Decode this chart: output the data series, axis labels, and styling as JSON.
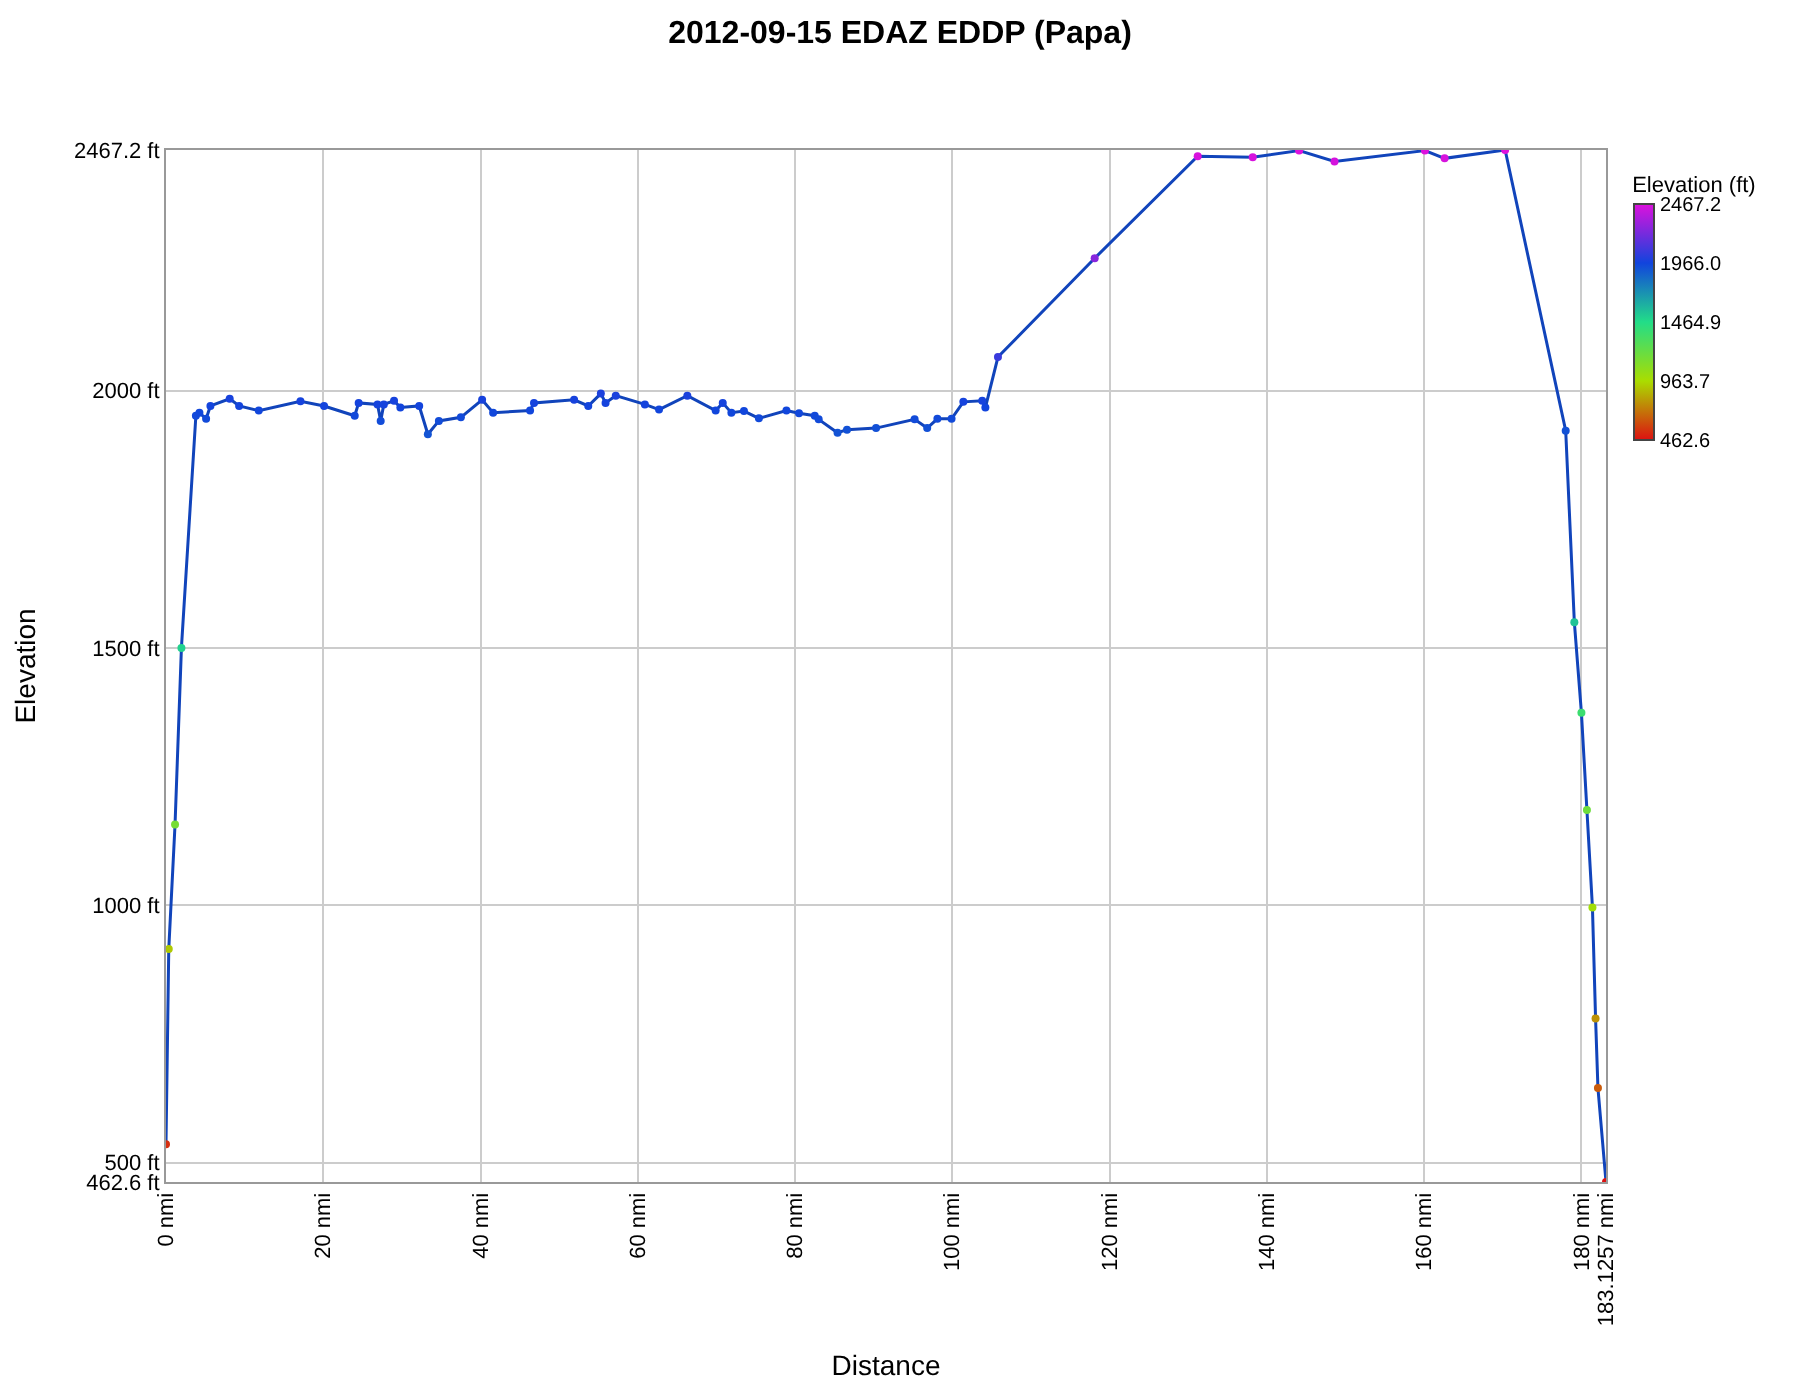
{
  "chart_data": {
    "type": "line",
    "title": "2012-09-15 EDAZ EDDP (Papa)",
    "xlabel": "Distance",
    "ylabel": "Elevation",
    "clabel": "Elevation (ft)",
    "x": [
      0,
      0.35,
      1.15,
      1.96,
      3.8,
      4.25,
      5.1,
      5.65,
      8.1,
      9.3,
      11.8,
      17.1,
      20.1,
      24.0,
      24.5,
      26.9,
      27.3,
      27.7,
      29.0,
      29.8,
      32.2,
      33.3,
      34.7,
      37.5,
      40.2,
      41.6,
      46.3,
      46.8,
      51.9,
      53.7,
      55.3,
      55.9,
      57.2,
      60.9,
      62.7,
      66.3,
      69.9,
      70.8,
      71.9,
      73.5,
      75.4,
      78.9,
      80.5,
      82.5,
      83.0,
      85.4,
      86.6,
      90.3,
      95.2,
      96.8,
      98.1,
      99.9,
      101.4,
      103.8,
      104.2,
      105.8,
      118.1,
      131.2,
      138.2,
      144.1,
      148.6,
      160.1,
      162.6,
      170.3,
      178.0,
      179.1,
      180.0,
      180.7,
      181.4,
      181.8,
      182.1,
      183.1257
    ],
    "series": [
      {
        "color": "#1144bb",
        "values": [
          536,
          915,
          1157,
          1500,
          1951,
          1957,
          1945,
          1970,
          1984,
          1970,
          1961,
          1979,
          1970,
          1951,
          1976,
          1973,
          1941,
          1973,
          1980,
          1967,
          1970,
          1915,
          1941,
          1948,
          1982,
          1957,
          1961,
          1976,
          1982,
          1970,
          1994,
          1976,
          1990,
          1973,
          1963,
          1990,
          1961,
          1976,
          1957,
          1960,
          1946,
          1961,
          1956,
          1951,
          1944,
          1918,
          1924,
          1927,
          1944,
          1927,
          1945,
          1945,
          1978,
          1980,
          1967,
          2065,
          2257,
          2455,
          2453,
          2466,
          2445,
          2466,
          2451,
          2467.2,
          1922,
          1550,
          1374,
          1185,
          996,
          780,
          645,
          462.6
        ]
      }
    ],
    "xlim": [
      0,
      183.1257
    ],
    "xticks": [
      {
        "value": 0,
        "label": "0 nmi"
      },
      {
        "value": 20,
        "label": "20 nmi"
      },
      {
        "value": 40,
        "label": "40 nmi"
      },
      {
        "value": 60,
        "label": "60 nmi"
      },
      {
        "value": 80,
        "label": "80 nmi"
      },
      {
        "value": 100,
        "label": "100 nmi"
      },
      {
        "value": 120,
        "label": "120 nmi"
      },
      {
        "value": 140,
        "label": "140 nmi"
      },
      {
        "value": 160,
        "label": "160 nmi"
      },
      {
        "value": 180,
        "label": "180 nmi"
      },
      {
        "value": 183.1257,
        "label": "183.1257 nmi"
      }
    ],
    "ylim": [
      462.6,
      2467.2
    ],
    "yticks": [
      {
        "value": 462.6,
        "label": "462.6 ft"
      },
      {
        "value": 500,
        "label": "500 ft"
      },
      {
        "value": 1000,
        "label": "1000 ft"
      },
      {
        "value": 1500,
        "label": "1500 ft"
      },
      {
        "value": 2000,
        "label": "2000 ft"
      },
      {
        "value": 2467.2,
        "label": "2467.2 ft"
      }
    ],
    "clim": [
      462.6,
      2467.2
    ],
    "cticks": [
      462.6,
      963.7,
      1464.9,
      {
        "value": 1966,
        "label": "1966.0"
      },
      2467.2
    ],
    "grid": true,
    "marker": "circle",
    "line_style": "solid"
  }
}
